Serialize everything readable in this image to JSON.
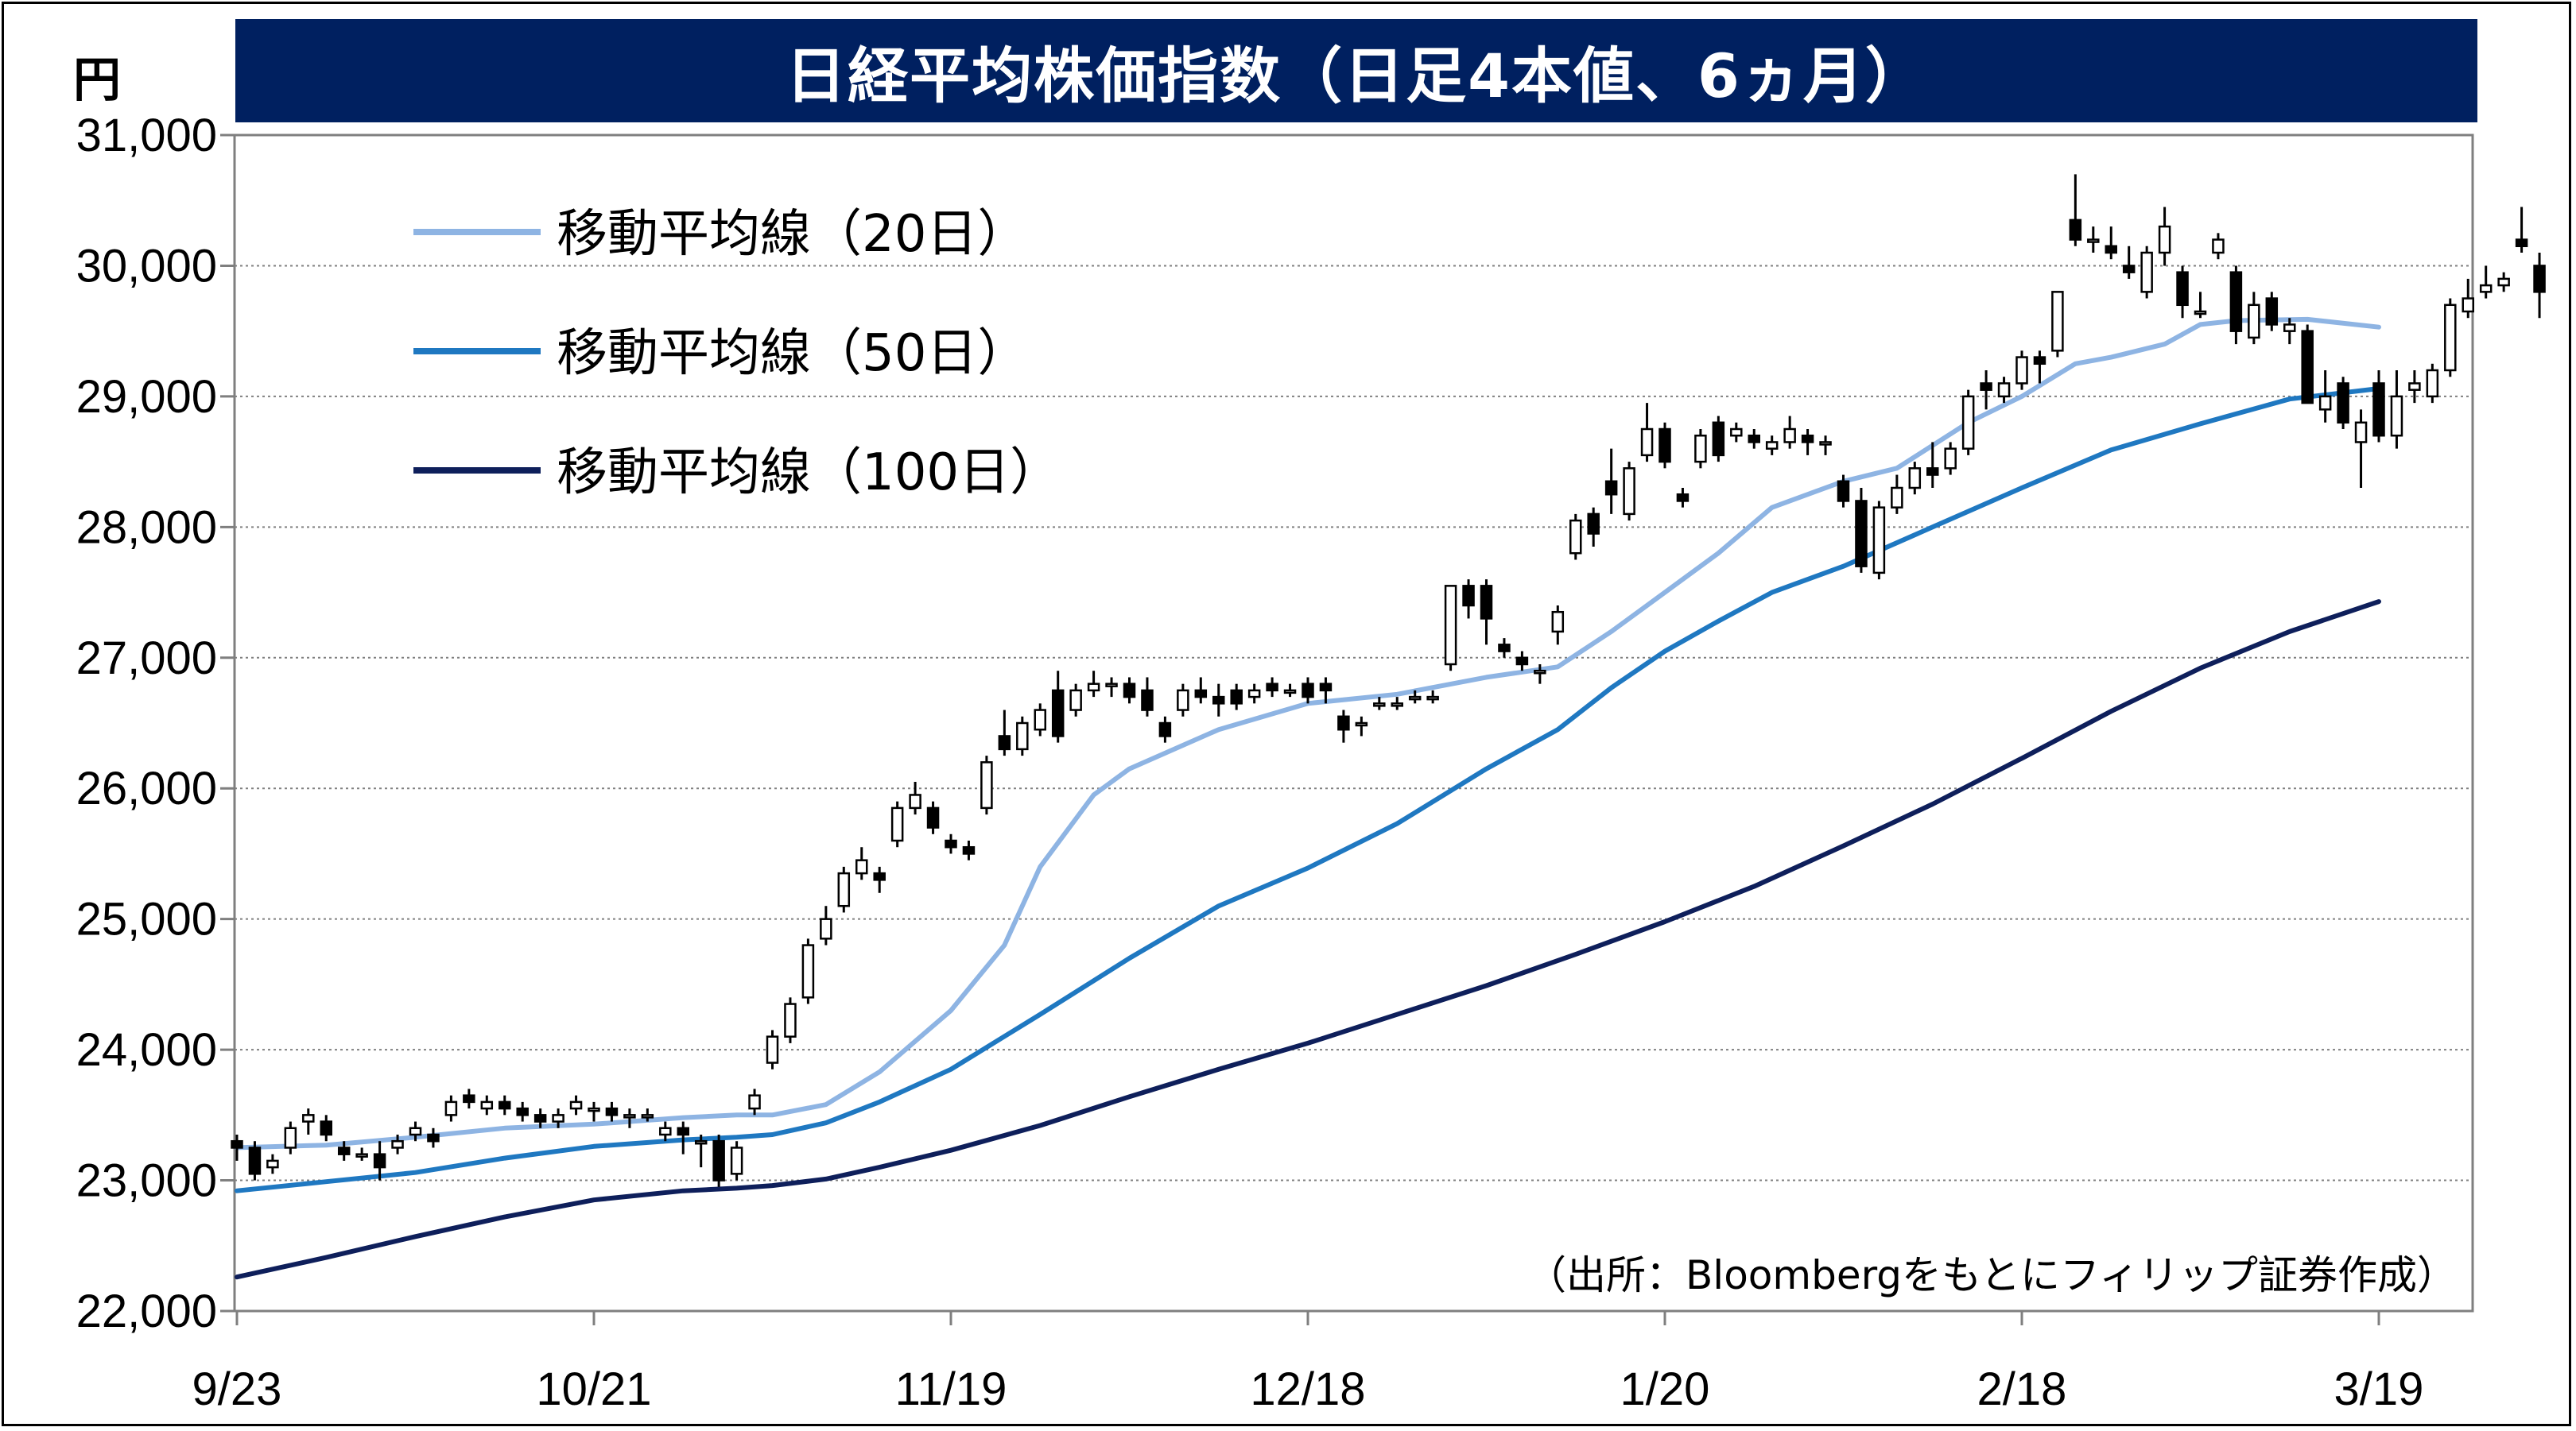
{
  "title": "日経平均株価指数（日足4本値、6ヵ月）",
  "unit": "円",
  "source_note": "（出所：Bloombergをもとにフィリップ証券作成）",
  "colors": {
    "title_bg": "#002060",
    "ma20": "#8EB4E3",
    "ma50": "#1F78C1",
    "ma100": "#0E1F5B",
    "candle": "#000000",
    "grid": "#808080"
  },
  "legend": [
    {
      "label": "移動平均線（20日）",
      "color_key": "ma20"
    },
    {
      "label": "移動平均線（50日）",
      "color_key": "ma50"
    },
    {
      "label": "移動平均線（100日）",
      "color_key": "ma100"
    }
  ],
  "chart_data": {
    "type": "candlestick",
    "ylim": [
      22000,
      31000
    ],
    "y_ticks": [
      22000,
      23000,
      24000,
      25000,
      26000,
      27000,
      28000,
      29000,
      30000,
      31000
    ],
    "y_tick_labels": [
      "22,000",
      "23,000",
      "24,000",
      "25,000",
      "26,000",
      "27,000",
      "28,000",
      "29,000",
      "30,000",
      "31,000"
    ],
    "x_tick_labels": [
      "9/23",
      "10/21",
      "11/19",
      "12/18",
      "1/20",
      "2/18",
      "3/19"
    ],
    "x_tick_index": [
      0,
      20,
      40,
      60,
      80,
      100,
      120
    ],
    "grid": true,
    "legend_position": "top-left",
    "candles": [
      [
        23300,
        23350,
        23150,
        23250
      ],
      [
        23250,
        23300,
        23000,
        23050
      ],
      [
        23100,
        23200,
        23050,
        23150
      ],
      [
        23250,
        23450,
        23200,
        23400
      ],
      [
        23450,
        23550,
        23350,
        23500
      ],
      [
        23450,
        23500,
        23300,
        23350
      ],
      [
        23250,
        23300,
        23150,
        23200
      ],
      [
        23200,
        23250,
        23150,
        23200
      ],
      [
        23200,
        23300,
        23000,
        23100
      ],
      [
        23250,
        23350,
        23200,
        23300
      ],
      [
        23350,
        23450,
        23300,
        23400
      ],
      [
        23350,
        23400,
        23250,
        23300
      ],
      [
        23500,
        23650,
        23450,
        23600
      ],
      [
        23650,
        23700,
        23550,
        23600
      ],
      [
        23550,
        23650,
        23500,
        23600
      ],
      [
        23600,
        23650,
        23500,
        23550
      ],
      [
        23550,
        23600,
        23450,
        23500
      ],
      [
        23500,
        23550,
        23400,
        23450
      ],
      [
        23450,
        23550,
        23400,
        23500
      ],
      [
        23550,
        23650,
        23500,
        23600
      ],
      [
        23550,
        23600,
        23450,
        23550
      ],
      [
        23550,
        23600,
        23450,
        23500
      ],
      [
        23500,
        23550,
        23400,
        23500
      ],
      [
        23500,
        23550,
        23450,
        23500
      ],
      [
        23350,
        23450,
        23300,
        23400
      ],
      [
        23400,
        23450,
        23200,
        23350
      ],
      [
        23300,
        23350,
        23100,
        23300
      ],
      [
        23300,
        23350,
        22950,
        23000
      ],
      [
        23050,
        23300,
        23000,
        23250
      ],
      [
        23550,
        23700,
        23500,
        23650
      ],
      [
        23900,
        24150,
        23850,
        24100
      ],
      [
        24100,
        24400,
        24050,
        24350
      ],
      [
        24400,
        24850,
        24350,
        24800
      ],
      [
        24850,
        25100,
        24800,
        25000
      ],
      [
        25100,
        25400,
        25050,
        25350
      ],
      [
        25350,
        25550,
        25300,
        25450
      ],
      [
        25350,
        25400,
        25200,
        25300
      ],
      [
        25600,
        25900,
        25550,
        25850
      ],
      [
        25850,
        26050,
        25800,
        25950
      ],
      [
        25850,
        25900,
        25650,
        25700
      ],
      [
        25600,
        25650,
        25500,
        25550
      ],
      [
        25550,
        25600,
        25450,
        25500
      ],
      [
        25850,
        26250,
        25800,
        26200
      ],
      [
        26400,
        26600,
        26250,
        26300
      ],
      [
        26300,
        26550,
        26250,
        26500
      ],
      [
        26450,
        26650,
        26400,
        26600
      ],
      [
        26750,
        26900,
        26350,
        26400
      ],
      [
        26600,
        26800,
        26550,
        26750
      ],
      [
        26750,
        26900,
        26700,
        26800
      ],
      [
        26800,
        26850,
        26700,
        26800
      ],
      [
        26800,
        26850,
        26650,
        26700
      ],
      [
        26750,
        26850,
        26550,
        26600
      ],
      [
        26500,
        26550,
        26350,
        26400
      ],
      [
        26600,
        26800,
        26550,
        26750
      ],
      [
        26750,
        26850,
        26650,
        26700
      ],
      [
        26700,
        26800,
        26550,
        26650
      ],
      [
        26750,
        26800,
        26600,
        26650
      ],
      [
        26700,
        26800,
        26650,
        26750
      ],
      [
        26800,
        26850,
        26700,
        26750
      ],
      [
        26750,
        26800,
        26700,
        26750
      ],
      [
        26800,
        26850,
        26650,
        26700
      ],
      [
        26800,
        26850,
        26650,
        26750
      ],
      [
        26550,
        26600,
        26350,
        26450
      ],
      [
        26500,
        26550,
        26400,
        26500
      ],
      [
        26650,
        26700,
        26600,
        26650
      ],
      [
        26650,
        26700,
        26600,
        26650
      ],
      [
        26700,
        26750,
        26650,
        26700
      ],
      [
        26700,
        26750,
        26650,
        26700
      ],
      [
        26950,
        27550,
        26900,
        27550
      ],
      [
        27550,
        27600,
        27300,
        27400
      ],
      [
        27550,
        27600,
        27100,
        27300
      ],
      [
        27100,
        27150,
        27000,
        27050
      ],
      [
        27000,
        27050,
        26900,
        26950
      ],
      [
        26900,
        26950,
        26800,
        26900
      ],
      [
        27200,
        27400,
        27100,
        27350
      ],
      [
        27800,
        28100,
        27750,
        28050
      ],
      [
        28100,
        28150,
        27850,
        27950
      ],
      [
        28350,
        28600,
        28100,
        28250
      ],
      [
        28100,
        28500,
        28050,
        28450
      ],
      [
        28550,
        28950,
        28500,
        28750
      ],
      [
        28750,
        28800,
        28450,
        28500
      ],
      [
        28250,
        28300,
        28150,
        28200
      ],
      [
        28500,
        28750,
        28450,
        28700
      ],
      [
        28800,
        28850,
        28500,
        28550
      ],
      [
        28700,
        28800,
        28650,
        28750
      ],
      [
        28700,
        28750,
        28600,
        28650
      ],
      [
        28600,
        28700,
        28550,
        28650
      ],
      [
        28650,
        28850,
        28600,
        28750
      ],
      [
        28700,
        28750,
        28550,
        28650
      ],
      [
        28650,
        28700,
        28550,
        28650
      ],
      [
        28350,
        28400,
        28150,
        28200
      ],
      [
        28200,
        28300,
        27650,
        27700
      ],
      [
        27650,
        28200,
        27600,
        28150
      ],
      [
        28150,
        28400,
        28100,
        28300
      ],
      [
        28300,
        28500,
        28250,
        28450
      ],
      [
        28450,
        28650,
        28300,
        28400
      ],
      [
        28450,
        28650,
        28400,
        28600
      ],
      [
        28600,
        29050,
        28550,
        29000
      ],
      [
        29100,
        29200,
        28900,
        29050
      ],
      [
        29000,
        29150,
        28950,
        29100
      ],
      [
        29100,
        29350,
        29050,
        29300
      ],
      [
        29300,
        29350,
        29100,
        29250
      ],
      [
        29350,
        29800,
        29300,
        29800
      ],
      [
        30350,
        30700,
        30150,
        30200
      ],
      [
        30200,
        30300,
        30100,
        30200
      ],
      [
        30150,
        30300,
        30050,
        30100
      ],
      [
        30000,
        30150,
        29900,
        29950
      ],
      [
        29800,
        30150,
        29750,
        30100
      ],
      [
        30100,
        30450,
        30000,
        30300
      ],
      [
        29950,
        30000,
        29600,
        29700
      ],
      [
        29650,
        29800,
        29600,
        29650
      ],
      [
        30100,
        30250,
        30050,
        30200
      ],
      [
        29950,
        30000,
        29400,
        29500
      ],
      [
        29450,
        29800,
        29400,
        29700
      ],
      [
        29750,
        29800,
        29500,
        29550
      ],
      [
        29500,
        29600,
        29400,
        29550
      ],
      [
        29500,
        29550,
        28950,
        28950
      ],
      [
        28900,
        29200,
        28800,
        29000
      ],
      [
        29100,
        29150,
        28750,
        28800
      ],
      [
        28650,
        28900,
        28300,
        28800
      ],
      [
        29100,
        29200,
        28650,
        28700
      ],
      [
        28700,
        29200,
        28600,
        29000
      ],
      [
        29050,
        29200,
        28950,
        29100
      ],
      [
        29000,
        29250,
        28950,
        29200
      ],
      [
        29200,
        29750,
        29150,
        29700
      ],
      [
        29650,
        29900,
        29600,
        29750
      ],
      [
        29800,
        30000,
        29750,
        29850
      ],
      [
        29850,
        29950,
        29800,
        29900
      ],
      [
        30200,
        30450,
        30100,
        30150
      ],
      [
        30000,
        30100,
        29600,
        29800
      ]
    ],
    "series": [
      {
        "name": "移動平均線（20日）",
        "color_key": "ma20",
        "x": [
          0,
          5,
          10,
          15,
          20,
          25,
          28,
          30,
          33,
          36,
          40,
          43,
          45,
          48,
          50,
          55,
          60,
          65,
          70,
          74,
          77,
          80,
          83,
          86,
          90,
          93,
          97,
          100,
          103,
          105,
          108,
          110,
          112,
          116,
          120
        ],
        "y": [
          23250,
          23270,
          23330,
          23400,
          23430,
          23480,
          23500,
          23500,
          23580,
          23830,
          24300,
          24800,
          25400,
          25950,
          26150,
          26450,
          26650,
          26720,
          26850,
          26930,
          27200,
          27500,
          27800,
          28150,
          28350,
          28450,
          28800,
          29000,
          29250,
          29300,
          29400,
          29550,
          29580,
          29590,
          29530
        ]
      },
      {
        "name": "移動平均線（50日）",
        "color_key": "ma50",
        "x": [
          0,
          5,
          10,
          15,
          20,
          25,
          28,
          30,
          33,
          36,
          40,
          45,
          50,
          55,
          60,
          65,
          70,
          74,
          77,
          80,
          83,
          86,
          90,
          95,
          100,
          105,
          110,
          115,
          120
        ],
        "y": [
          22920,
          22990,
          23060,
          23170,
          23260,
          23310,
          23330,
          23350,
          23440,
          23600,
          23850,
          24270,
          24700,
          25100,
          25390,
          25730,
          26150,
          26450,
          26770,
          27050,
          27280,
          27500,
          27700,
          28000,
          28300,
          28590,
          28790,
          28980,
          29060
        ]
      },
      {
        "name": "移動平均線（100日）",
        "color_key": "ma100",
        "x": [
          0,
          5,
          10,
          15,
          20,
          25,
          28,
          30,
          33,
          36,
          40,
          45,
          50,
          55,
          60,
          65,
          70,
          75,
          80,
          85,
          90,
          95,
          100,
          105,
          110,
          115,
          120
        ],
        "y": [
          22260,
          22410,
          22570,
          22720,
          22850,
          22920,
          22940,
          22960,
          23010,
          23100,
          23230,
          23420,
          23640,
          23850,
          24050,
          24270,
          24490,
          24730,
          24980,
          25250,
          25560,
          25880,
          26230,
          26590,
          26920,
          27200,
          27430
        ]
      }
    ]
  }
}
